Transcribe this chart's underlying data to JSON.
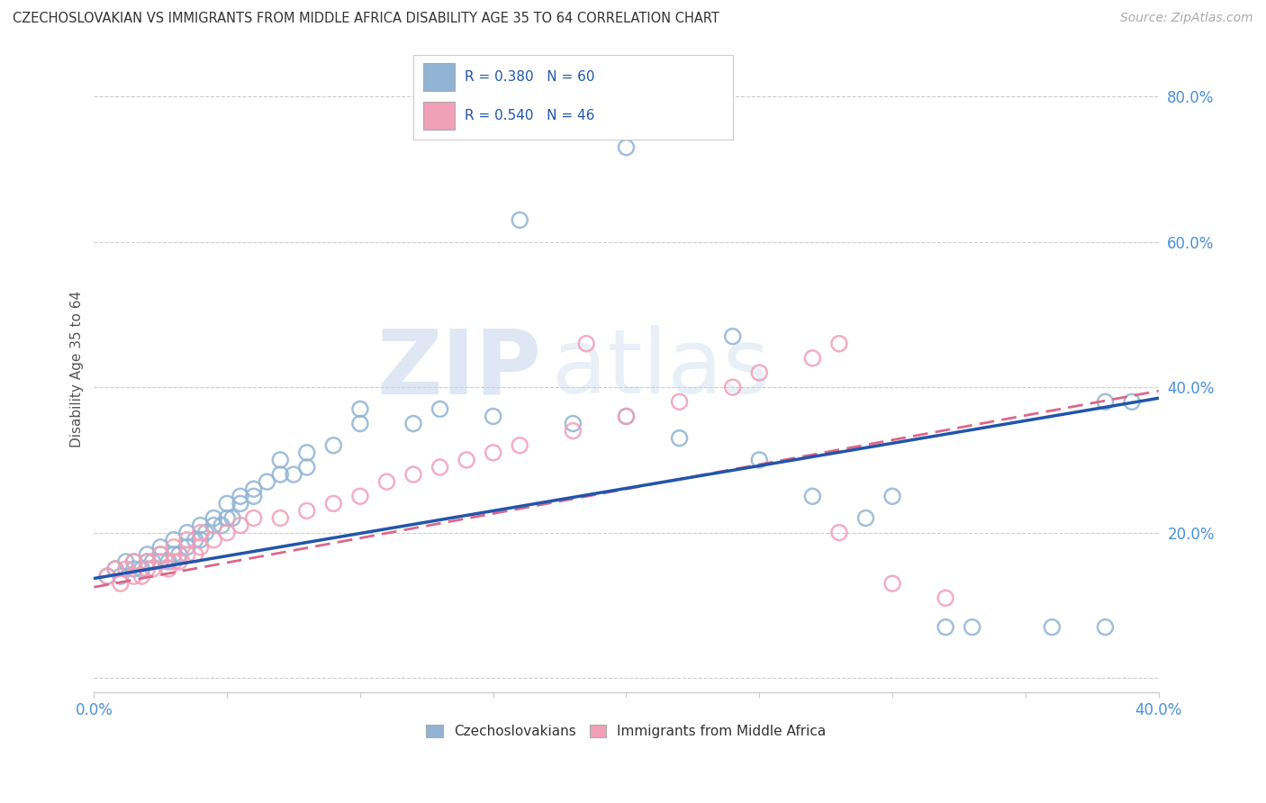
{
  "title": "CZECHOSLOVAKIAN VS IMMIGRANTS FROM MIDDLE AFRICA DISABILITY AGE 35 TO 64 CORRELATION CHART",
  "source": "Source: ZipAtlas.com",
  "ylabel": "Disability Age 35 to 64",
  "x_lim": [
    0.0,
    0.4
  ],
  "y_lim": [
    -0.02,
    0.87
  ],
  "blue_R": 0.38,
  "blue_N": 60,
  "pink_R": 0.54,
  "pink_N": 46,
  "blue_color": "#92b4d4",
  "pink_color": "#f0a0b8",
  "blue_line_color": "#2255aa",
  "pink_line_color": "#dd6688",
  "legend_label_blue": "Czechoslovakians",
  "legend_label_pink": "Immigrants from Middle Africa",
  "watermark_zip": "ZIP",
  "watermark_atlas": "atlas",
  "blue_x": [
    0.005,
    0.008,
    0.01,
    0.012,
    0.015,
    0.015,
    0.018,
    0.02,
    0.02,
    0.022,
    0.025,
    0.025,
    0.028,
    0.03,
    0.03,
    0.032,
    0.035,
    0.035,
    0.038,
    0.04,
    0.04,
    0.042,
    0.045,
    0.045,
    0.048,
    0.05,
    0.05,
    0.052,
    0.055,
    0.055,
    0.06,
    0.06,
    0.065,
    0.07,
    0.07,
    0.075,
    0.08,
    0.08,
    0.09,
    0.1,
    0.1,
    0.12,
    0.13,
    0.15,
    0.18,
    0.2,
    0.22,
    0.25,
    0.27,
    0.29,
    0.3,
    0.32,
    0.33,
    0.36,
    0.38,
    0.38,
    0.39,
    0.16,
    0.2,
    0.24
  ],
  "blue_y": [
    0.14,
    0.15,
    0.14,
    0.16,
    0.15,
    0.16,
    0.15,
    0.16,
    0.17,
    0.16,
    0.17,
    0.18,
    0.16,
    0.17,
    0.19,
    0.17,
    0.18,
    0.2,
    0.19,
    0.19,
    0.21,
    0.2,
    0.21,
    0.22,
    0.21,
    0.22,
    0.24,
    0.22,
    0.24,
    0.25,
    0.25,
    0.26,
    0.27,
    0.28,
    0.3,
    0.28,
    0.29,
    0.31,
    0.32,
    0.35,
    0.37,
    0.35,
    0.37,
    0.36,
    0.35,
    0.36,
    0.33,
    0.3,
    0.25,
    0.22,
    0.25,
    0.07,
    0.07,
    0.07,
    0.38,
    0.07,
    0.38,
    0.63,
    0.73,
    0.47
  ],
  "pink_x": [
    0.005,
    0.008,
    0.01,
    0.012,
    0.015,
    0.015,
    0.018,
    0.02,
    0.02,
    0.022,
    0.025,
    0.025,
    0.028,
    0.03,
    0.03,
    0.032,
    0.035,
    0.035,
    0.038,
    0.04,
    0.04,
    0.045,
    0.05,
    0.055,
    0.06,
    0.07,
    0.08,
    0.09,
    0.1,
    0.11,
    0.12,
    0.13,
    0.14,
    0.15,
    0.16,
    0.18,
    0.2,
    0.22,
    0.24,
    0.25,
    0.27,
    0.28,
    0.3,
    0.32,
    0.28,
    0.185
  ],
  "pink_y": [
    0.14,
    0.15,
    0.13,
    0.15,
    0.14,
    0.16,
    0.14,
    0.15,
    0.16,
    0.15,
    0.16,
    0.17,
    0.15,
    0.16,
    0.18,
    0.16,
    0.17,
    0.19,
    0.17,
    0.18,
    0.2,
    0.19,
    0.2,
    0.21,
    0.22,
    0.22,
    0.23,
    0.24,
    0.25,
    0.27,
    0.28,
    0.29,
    0.3,
    0.31,
    0.32,
    0.34,
    0.36,
    0.38,
    0.4,
    0.42,
    0.44,
    0.46,
    0.13,
    0.11,
    0.2,
    0.46
  ],
  "blue_line_x0": 0.0,
  "blue_line_y0": 0.137,
  "blue_line_x1": 0.4,
  "blue_line_y1": 0.385,
  "pink_line_x0": 0.0,
  "pink_line_y0": 0.125,
  "pink_line_x1": 0.4,
  "pink_line_y1": 0.395
}
